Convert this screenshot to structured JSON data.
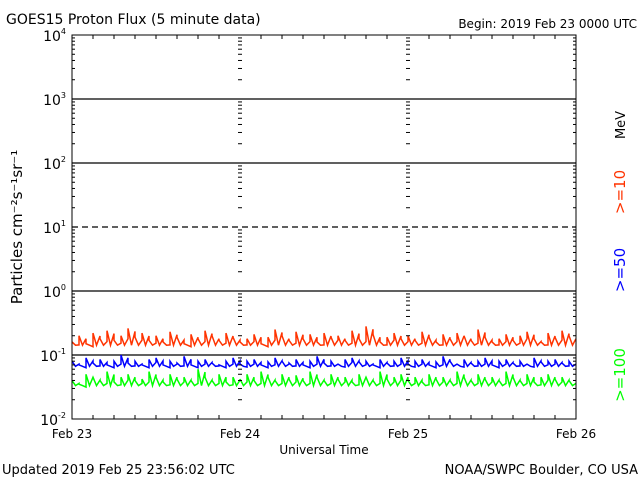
{
  "chart_data": {
    "type": "line",
    "title": "GOES15 Proton Flux (5 minute data)",
    "begin_label": "Begin: 2019 Feb 23 0000 UTC",
    "xlabel": "Universal Time",
    "ylabel": "Particles cm⁻²s⁻¹sr⁻¹",
    "y_scale": "log",
    "ylim": [
      0.01,
      10000
    ],
    "y_ticks": [
      {
        "exp": "4"
      },
      {
        "exp": "3"
      },
      {
        "exp": "2"
      },
      {
        "exp": "1"
      },
      {
        "exp": "0"
      },
      {
        "exp": "-1"
      },
      {
        "exp": "-2"
      }
    ],
    "x_ticks": [
      "Feb 23",
      "Feb 24",
      "Feb 25",
      "Feb 26"
    ],
    "xlim_hours": [
      0,
      72
    ],
    "unit_label": "MeV",
    "threshold_dashed": 10,
    "grid_solid": [
      1000,
      100,
      1,
      0.1
    ],
    "series": [
      {
        "name": ">=10",
        "color": "#ff3300",
        "values": [
          0.16,
          0.2,
          0.15,
          0.22,
          0.18,
          0.24,
          0.17,
          0.2,
          0.26,
          0.19,
          0.22,
          0.17,
          0.2,
          0.16,
          0.23,
          0.19,
          0.15,
          0.21,
          0.18,
          0.24,
          0.2,
          0.17,
          0.22,
          0.19,
          0.16,
          0.18,
          0.21,
          0.15,
          0.19,
          0.25,
          0.2,
          0.17,
          0.23,
          0.18,
          0.21,
          0.16,
          0.22,
          0.19,
          0.2,
          0.17,
          0.24,
          0.18,
          0.28,
          0.21,
          0.16,
          0.19,
          0.22,
          0.18,
          0.2,
          0.17,
          0.23,
          0.19,
          0.16,
          0.21,
          0.18,
          0.22,
          0.2,
          0.17,
          0.25,
          0.19,
          0.16,
          0.18,
          0.21,
          0.17,
          0.2,
          0.23,
          0.18,
          0.16,
          0.22,
          0.19,
          0.24,
          0.2
        ]
      },
      {
        "name": ">=50",
        "color": "#0000ff",
        "values": [
          0.08,
          0.07,
          0.09,
          0.075,
          0.085,
          0.07,
          0.08,
          0.1,
          0.075,
          0.08,
          0.07,
          0.085,
          0.09,
          0.07,
          0.08,
          0.075,
          0.095,
          0.07,
          0.08,
          0.085,
          0.075,
          0.07,
          0.08,
          0.09,
          0.072,
          0.08,
          0.085,
          0.07,
          0.078,
          0.09,
          0.08,
          0.075,
          0.085,
          0.07,
          0.08,
          0.095,
          0.075,
          0.08,
          0.072,
          0.085,
          0.09,
          0.078,
          0.08,
          0.07,
          0.085,
          0.075,
          0.08,
          0.09,
          0.072,
          0.08,
          0.085,
          0.07,
          0.078,
          0.095,
          0.08,
          0.072,
          0.085,
          0.075,
          0.08,
          0.09,
          0.07,
          0.08,
          0.085,
          0.075,
          0.08,
          0.072,
          0.09,
          0.078,
          0.08,
          0.085,
          0.075,
          0.08
        ]
      },
      {
        "name": ">=100",
        "color": "#00ff00",
        "values": [
          0.04,
          0.035,
          0.05,
          0.045,
          0.04,
          0.055,
          0.038,
          0.045,
          0.05,
          0.04,
          0.042,
          0.055,
          0.045,
          0.038,
          0.05,
          0.042,
          0.045,
          0.04,
          0.06,
          0.045,
          0.04,
          0.05,
          0.038,
          0.045,
          0.042,
          0.05,
          0.04,
          0.055,
          0.045,
          0.04,
          0.05,
          0.042,
          0.048,
          0.04,
          0.055,
          0.045,
          0.04,
          0.05,
          0.042,
          0.045,
          0.038,
          0.05,
          0.045,
          0.04,
          0.055,
          0.042,
          0.045,
          0.05,
          0.04,
          0.045,
          0.038,
          0.05,
          0.042,
          0.045,
          0.04,
          0.055,
          0.045,
          0.04,
          0.05,
          0.042,
          0.045,
          0.04,
          0.055,
          0.045,
          0.04,
          0.05,
          0.038,
          0.045,
          0.05,
          0.042,
          0.045,
          0.04
        ]
      }
    ]
  },
  "footer": {
    "updated": "Updated 2019 Feb 25 23:56:02 UTC",
    "source": "NOAA/SWPC Boulder, CO USA"
  }
}
